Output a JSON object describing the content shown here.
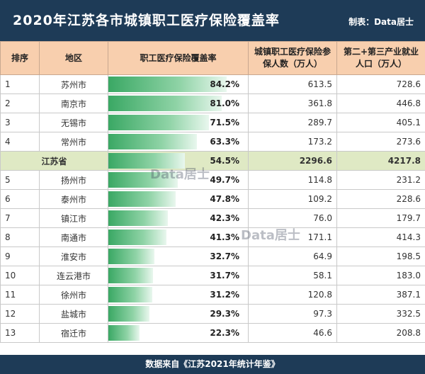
{
  "header": {
    "title": "2020年江苏各市城镇职工医疗保险覆盖率",
    "maker": "制表：Data居士"
  },
  "table": {
    "columns": [
      "排序",
      "地区",
      "职工医疗保险覆盖率",
      "城镇职工医疗保险参保人数（万人）",
      "第二+第三产业就业人口（万人）"
    ],
    "rows": [
      {
        "rank": "1",
        "region": "苏州市",
        "coverage": "84.2%",
        "coverage_value": 84.2,
        "insured": "613.5",
        "employed": "728.6"
      },
      {
        "rank": "2",
        "region": "南京市",
        "coverage": "81.0%",
        "coverage_value": 81.0,
        "insured": "361.8",
        "employed": "446.8"
      },
      {
        "rank": "3",
        "region": "无锡市",
        "coverage": "71.5%",
        "coverage_value": 71.5,
        "insured": "289.7",
        "employed": "405.1"
      },
      {
        "rank": "4",
        "region": "常州市",
        "coverage": "63.3%",
        "coverage_value": 63.3,
        "insured": "173.2",
        "employed": "273.6"
      },
      {
        "rank": "",
        "region": "江苏省",
        "coverage": "54.5%",
        "coverage_value": 54.5,
        "insured": "2296.6",
        "employed": "4217.8",
        "total": true
      },
      {
        "rank": "5",
        "region": "扬州市",
        "coverage": "49.7%",
        "coverage_value": 49.7,
        "insured": "114.8",
        "employed": "231.2"
      },
      {
        "rank": "6",
        "region": "泰州市",
        "coverage": "47.8%",
        "coverage_value": 47.8,
        "insured": "109.2",
        "employed": "228.6"
      },
      {
        "rank": "7",
        "region": "镇江市",
        "coverage": "42.3%",
        "coverage_value": 42.3,
        "insured": "76.0",
        "employed": "179.7"
      },
      {
        "rank": "8",
        "region": "南通市",
        "coverage": "41.3%",
        "coverage_value": 41.3,
        "insured": "171.1",
        "employed": "414.3"
      },
      {
        "rank": "9",
        "region": "淮安市",
        "coverage": "32.7%",
        "coverage_value": 32.7,
        "insured": "64.9",
        "employed": "198.5"
      },
      {
        "rank": "10",
        "region": "连云港市",
        "coverage": "31.7%",
        "coverage_value": 31.7,
        "insured": "58.1",
        "employed": "183.0"
      },
      {
        "rank": "11",
        "region": "徐州市",
        "coverage": "31.2%",
        "coverage_value": 31.2,
        "insured": "120.8",
        "employed": "387.1"
      },
      {
        "rank": "12",
        "region": "盐城市",
        "coverage": "29.3%",
        "coverage_value": 29.3,
        "insured": "97.3",
        "employed": "332.5"
      },
      {
        "rank": "13",
        "region": "宿迁市",
        "coverage": "22.3%",
        "coverage_value": 22.3,
        "insured": "46.6",
        "employed": "208.8"
      }
    ]
  },
  "watermark": "Data居士",
  "footer": {
    "source": "数据来自《江苏2021年统计年鉴》"
  },
  "colors": {
    "header_bg": "#1e3b57",
    "column_header_bg": "#f8cfae",
    "total_row_bg": "#dfe9c4",
    "bar_green": "#3aa864"
  }
}
